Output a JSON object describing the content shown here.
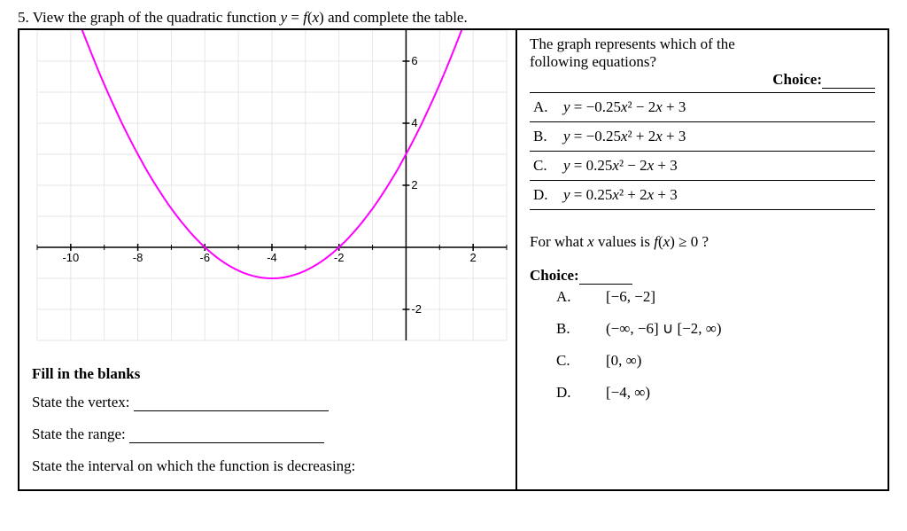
{
  "question": {
    "number": "5.",
    "prompt": "View the graph of the quadratic function y = f(x) and complete the table."
  },
  "graph": {
    "xlim": [
      -11,
      3
    ],
    "ylim": [
      -3,
      7
    ],
    "xticks": [
      -10,
      -8,
      -6,
      -4,
      -2,
      2
    ],
    "yticks": [
      -2,
      2,
      4,
      6
    ],
    "parabola": {
      "type": "parabola",
      "a": 0.25,
      "b": 2,
      "c": 3,
      "vertex": [
        -4,
        -1
      ],
      "color": "#ff00ff",
      "stroke_width": 2
    },
    "grid_color": "#e6e6e6",
    "axis_color": "#000000",
    "background": "#ffffff"
  },
  "fill": {
    "title": "Fill in the blanks",
    "vertex_label": "State the vertex:",
    "range_label": "State the range:",
    "decreasing_label": "State the interval on which the function is decreasing:"
  },
  "right": {
    "intro1": "The graph represents which of the",
    "intro2": "following equations?",
    "choice_label": "Choice:",
    "options": [
      {
        "letter": "A.",
        "eq": "y  =  −0.25x² − 2x + 3"
      },
      {
        "letter": "B.",
        "eq": "y  =  −0.25x² + 2x + 3"
      },
      {
        "letter": "C.",
        "eq": "y  =   0.25x² − 2x + 3"
      },
      {
        "letter": "D.",
        "eq": "y  =   0.25x² + 2x + 3"
      }
    ],
    "q2": "For what x values is f(x) ≥ 0 ?",
    "choice2_label": "Choice:",
    "options2": [
      {
        "letter": "A.",
        "ans": "[−6, −2]"
      },
      {
        "letter": "B.",
        "ans": "(−∞, −6] ∪ [−2, ∞)"
      },
      {
        "letter": "C.",
        "ans": "[0, ∞)"
      },
      {
        "letter": "D.",
        "ans": "[−4, ∞)"
      }
    ]
  }
}
